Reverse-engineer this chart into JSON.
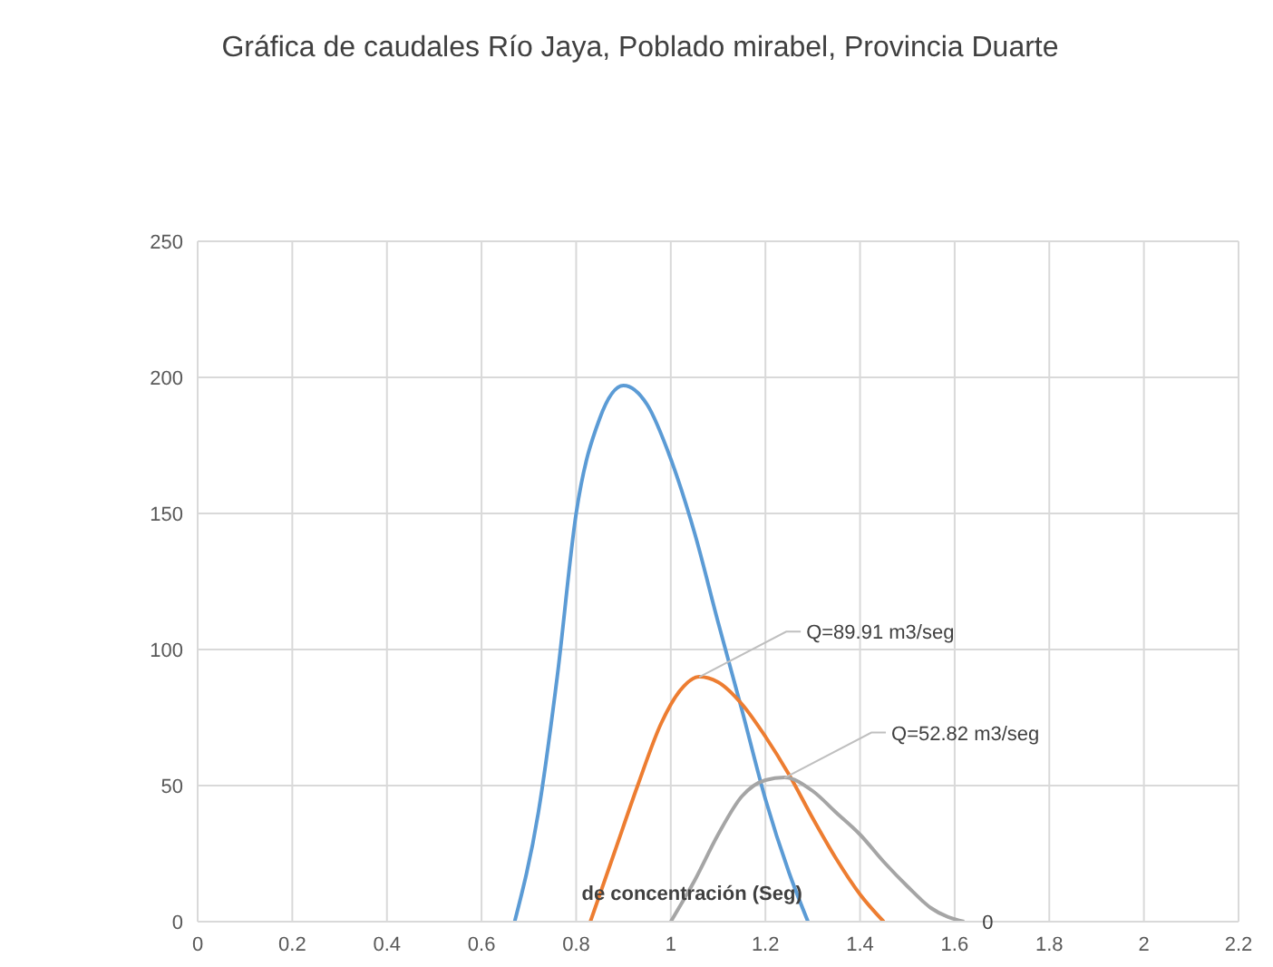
{
  "chart_data": {
    "type": "line",
    "title": "Gráfica de caudales Río Jaya, Poblado mirabel, Provincia Duarte",
    "xlabel": "de concentración (Seg)",
    "xlim": [
      0,
      2.2
    ],
    "xticks": [
      0,
      0.2,
      0.4,
      0.6,
      0.8,
      1,
      1.2,
      1.4,
      1.6,
      1.8,
      2,
      2.2
    ],
    "ylim": [
      0,
      250
    ],
    "yticks": [
      0,
      50,
      100,
      150,
      200,
      250
    ],
    "grid": true,
    "legend": false,
    "marker": "none",
    "line_style": "solid",
    "series": [
      {
        "color": "#5b9bd5",
        "x": [
          0.67,
          0.72,
          0.76,
          0.8,
          0.85,
          0.9,
          0.95,
          1.0,
          1.05,
          1.1,
          1.15,
          1.2,
          1.25,
          1.29
        ],
        "values": [
          0,
          40,
          90,
          150,
          185,
          197,
          190,
          170,
          143,
          110,
          78,
          45,
          18,
          0
        ]
      },
      {
        "color": "#ed7d31",
        "x": [
          0.83,
          0.88,
          0.93,
          0.98,
          1.02,
          1.06,
          1.1,
          1.15,
          1.2,
          1.25,
          1.3,
          1.35,
          1.4,
          1.45
        ],
        "values": [
          0,
          25,
          50,
          73,
          85,
          90,
          88,
          80,
          68,
          54,
          38,
          23,
          10,
          0
        ]
      },
      {
        "color": "#a5a5a5",
        "x": [
          1.0,
          1.05,
          1.1,
          1.15,
          1.2,
          1.24,
          1.3,
          1.35,
          1.4,
          1.45,
          1.5,
          1.55,
          1.62
        ],
        "values": [
          0,
          15,
          32,
          46,
          52,
          53,
          48,
          40,
          32,
          22,
          13,
          5,
          0
        ]
      }
    ],
    "annotations": [
      {
        "text": "Q=89.91 m3/seg",
        "x": 1.06,
        "y": 89.91
      },
      {
        "text": "Q=52.82 m3/seg",
        "x": 1.24,
        "y": 52.82
      },
      {
        "text": "0",
        "x": 1.62,
        "y": 0
      }
    ]
  }
}
